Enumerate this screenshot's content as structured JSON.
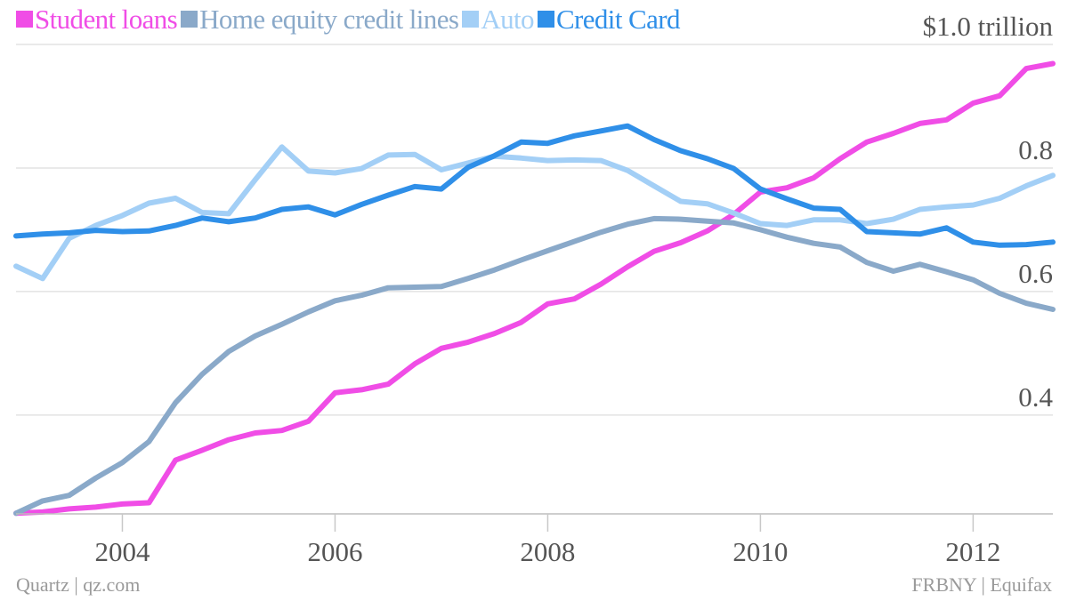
{
  "chart_data": {
    "type": "line",
    "y_unit_label": "$1.0 trillion",
    "x_start": 2003.0,
    "x_step": 0.25,
    "xlim": [
      2003.0,
      2012.75
    ],
    "ylim": [
      0.24,
      1.0
    ],
    "x_ticks": [
      2004,
      2006,
      2008,
      2010,
      2012
    ],
    "x_tick_labels": [
      "2004",
      "2006",
      "2008",
      "2010",
      "2012"
    ],
    "y_ticks": [
      0.4,
      0.6,
      0.8,
      1.0
    ],
    "y_tick_labels": [
      "0.4",
      "0.6",
      "0.8",
      "$1.0 trillion"
    ],
    "grid": "horizontal",
    "legend_position": "top-left",
    "series": [
      {
        "name": "Student loans",
        "color": "#f04de6",
        "values": [
          0.241,
          0.243,
          0.248,
          0.251,
          0.256,
          0.258,
          0.327,
          0.343,
          0.36,
          0.371,
          0.375,
          0.39,
          0.436,
          0.441,
          0.45,
          0.483,
          0.508,
          0.518,
          0.532,
          0.55,
          0.58,
          0.588,
          0.612,
          0.64,
          0.665,
          0.679,
          0.698,
          0.725,
          0.761,
          0.768,
          0.784,
          0.815,
          0.842,
          0.856,
          0.872,
          0.878,
          0.905,
          0.917,
          0.961,
          0.969
        ]
      },
      {
        "name": "Home equity credit lines",
        "color": "#8aa9c9",
        "values": [
          0.241,
          0.261,
          0.27,
          0.298,
          0.323,
          0.357,
          0.42,
          0.466,
          0.503,
          0.528,
          0.547,
          0.567,
          0.585,
          0.594,
          0.606,
          0.607,
          0.608,
          0.621,
          0.635,
          0.651,
          0.666,
          0.681,
          0.696,
          0.709,
          0.718,
          0.717,
          0.714,
          0.711,
          0.7,
          0.688,
          0.678,
          0.672,
          0.647,
          0.633,
          0.644,
          0.632,
          0.619,
          0.597,
          0.581,
          0.571
        ]
      },
      {
        "name": "Auto",
        "color": "#a3cff6",
        "values": [
          0.641,
          0.621,
          0.686,
          0.707,
          0.723,
          0.743,
          0.751,
          0.728,
          0.726,
          0.781,
          0.834,
          0.795,
          0.792,
          0.799,
          0.821,
          0.822,
          0.797,
          0.808,
          0.819,
          0.816,
          0.812,
          0.813,
          0.812,
          0.796,
          0.771,
          0.746,
          0.742,
          0.727,
          0.71,
          0.707,
          0.716,
          0.716,
          0.71,
          0.717,
          0.733,
          0.737,
          0.74,
          0.751,
          0.771,
          0.788
        ]
      },
      {
        "name": "Credit Card",
        "color": "#2f8fe8",
        "values": [
          0.69,
          0.693,
          0.695,
          0.699,
          0.697,
          0.698,
          0.707,
          0.719,
          0.713,
          0.719,
          0.733,
          0.737,
          0.724,
          0.741,
          0.756,
          0.77,
          0.766,
          0.801,
          0.82,
          0.842,
          0.84,
          0.852,
          0.86,
          0.868,
          0.846,
          0.828,
          0.815,
          0.799,
          0.766,
          0.75,
          0.735,
          0.733,
          0.697,
          0.695,
          0.693,
          0.703,
          0.68,
          0.675,
          0.676,
          0.68
        ]
      }
    ]
  },
  "footer": {
    "left": "Quartz | qz.com",
    "right": "FRBNY | Equifax"
  }
}
